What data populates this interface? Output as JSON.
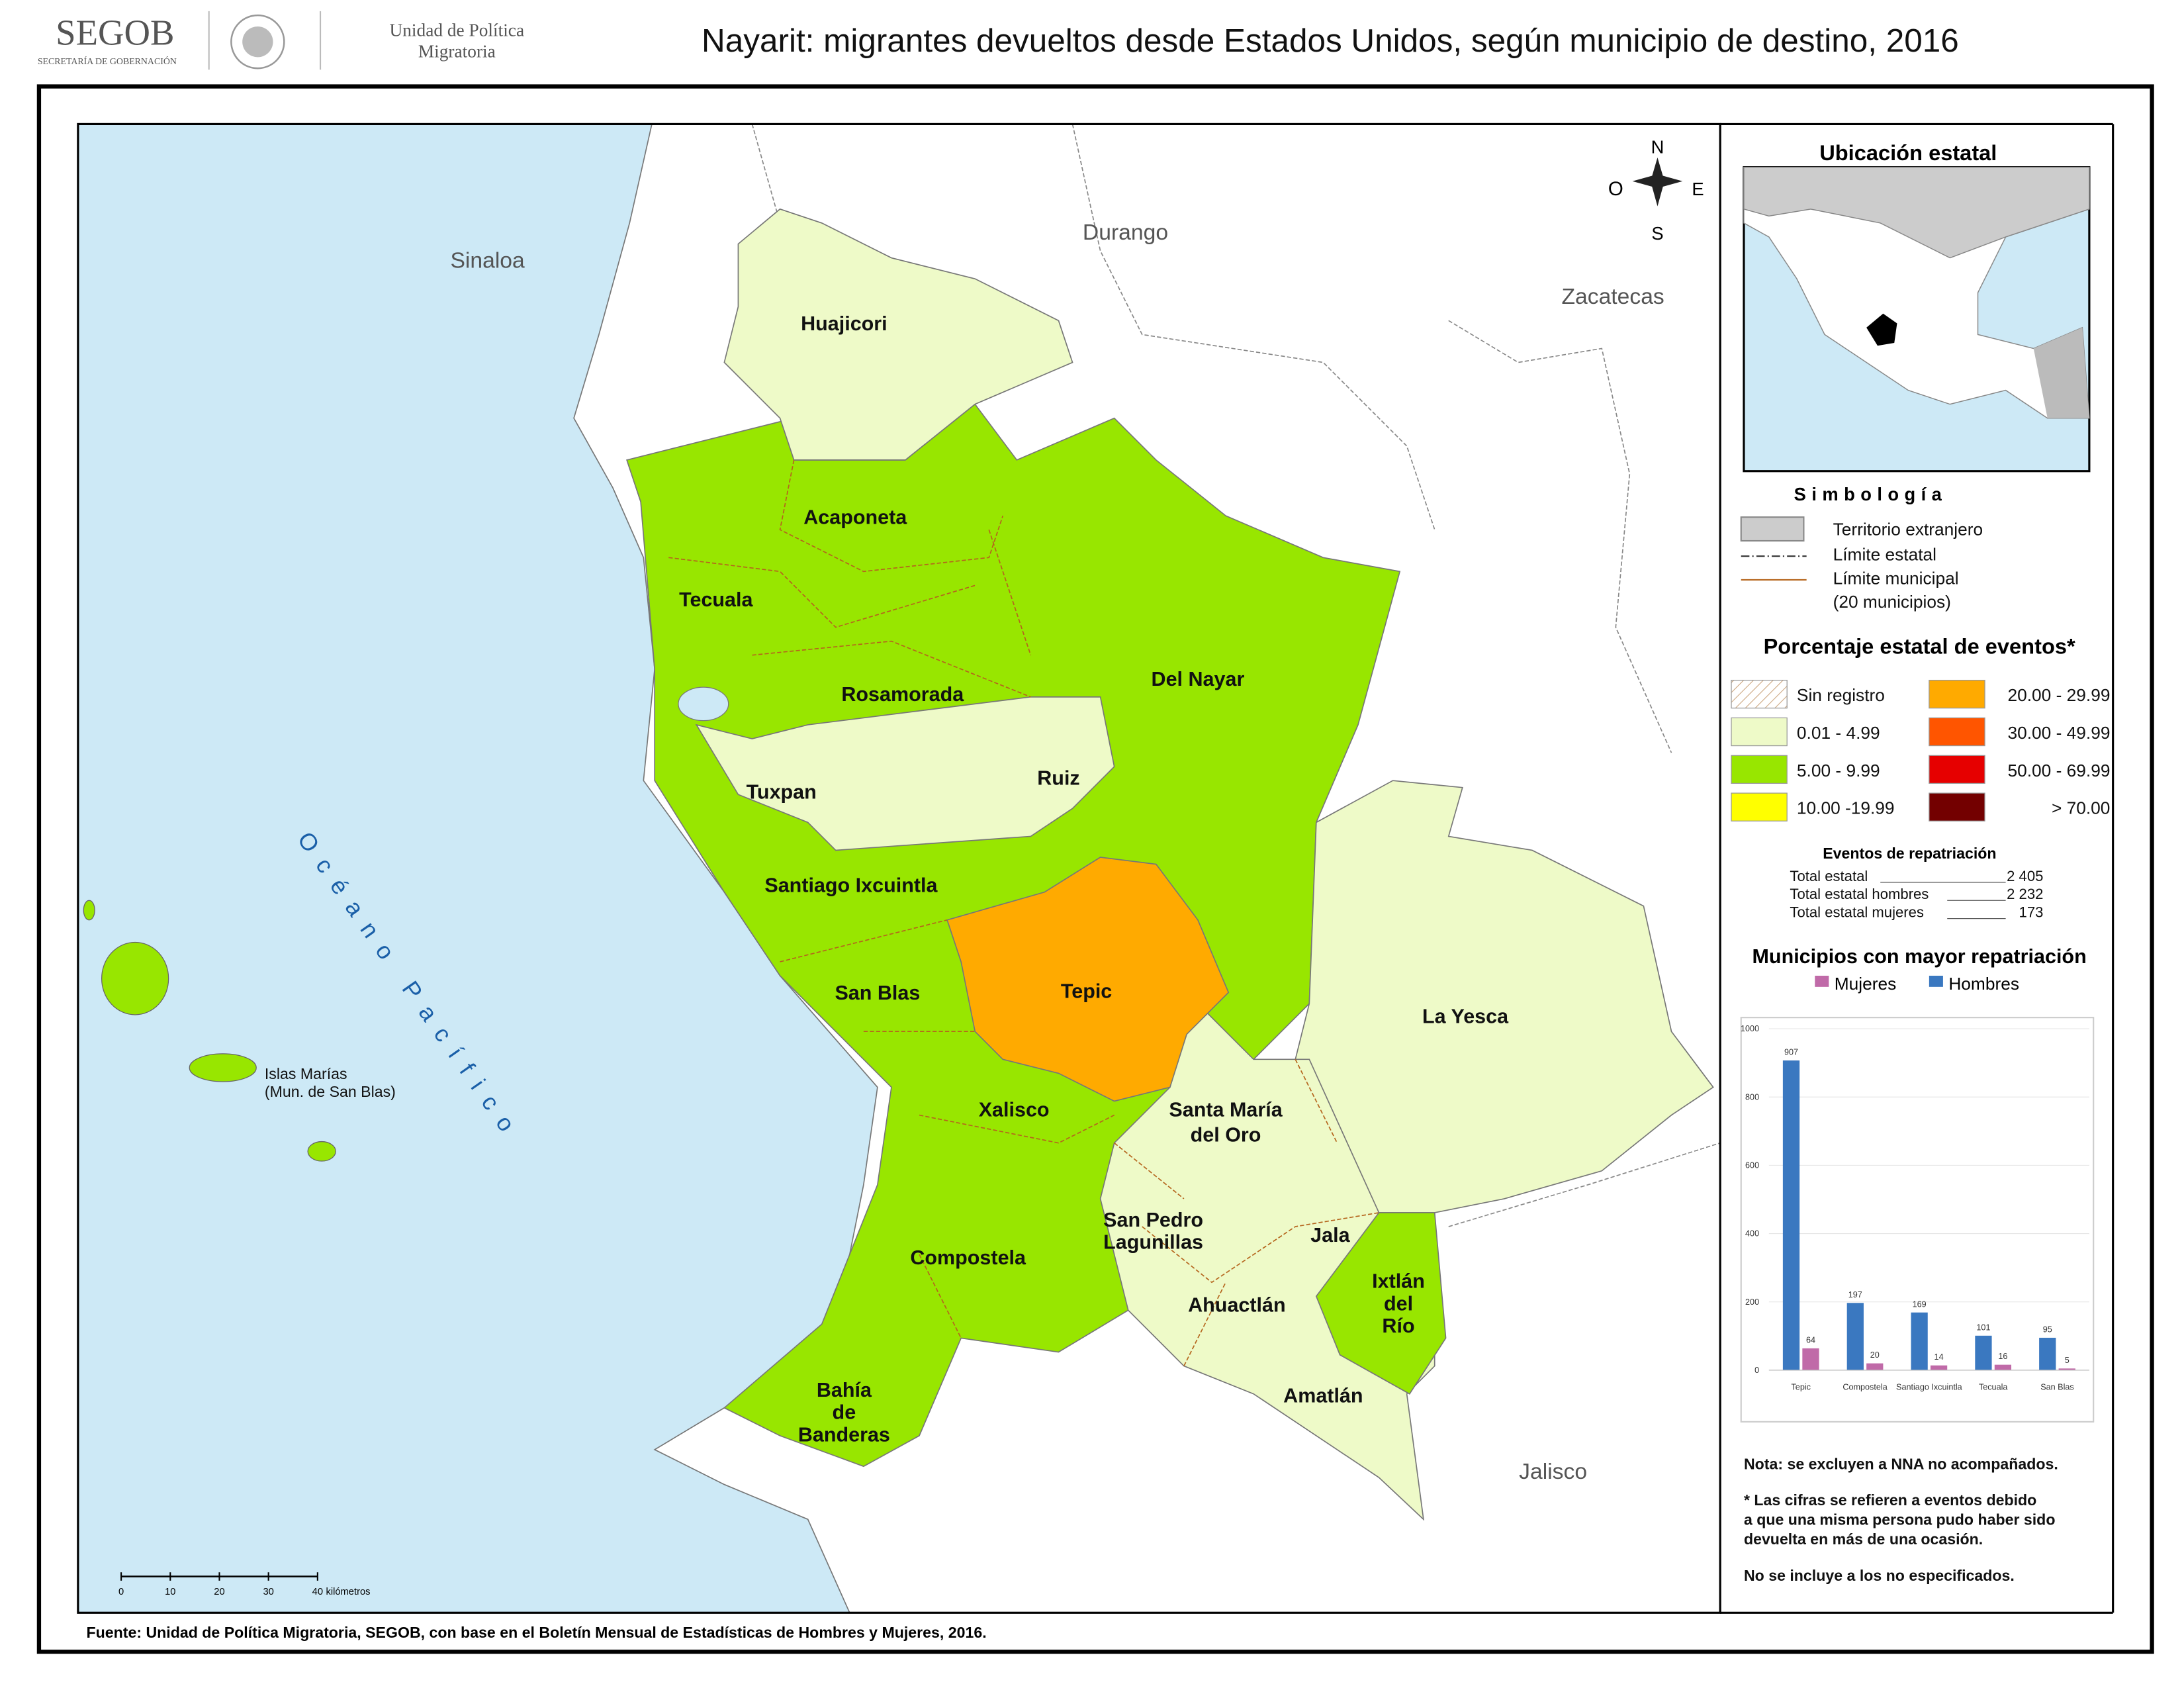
{
  "header": {
    "logo": "SEGOB",
    "logo_subtitle": "SECRETARÍA DE GOBERNACIÓN",
    "unit": [
      "Unidad de Política",
      "Migratoria"
    ],
    "title": "Nayarit: migrantes devueltos desde Estados Unidos, según municipio de destino, 2016"
  },
  "map": {
    "states": [
      "Sinaloa",
      "Durango",
      "Zacatecas",
      "Jalisco"
    ],
    "ocean": "Océano Pacífico",
    "islands": [
      "Islas Marías",
      "(Mun. de San Blas)"
    ],
    "compass": [
      "N",
      "O",
      "E",
      "S"
    ],
    "municipalities": {
      "huajicori": [
        "Huajicori"
      ],
      "acaponeta": [
        "Acaponeta"
      ],
      "tecuala": [
        "Tecuala"
      ],
      "rosamorada": [
        "Rosamorada"
      ],
      "del_nayar": [
        "Del Nayar"
      ],
      "ruiz": [
        "Ruiz"
      ],
      "tuxpan": [
        "Tuxpan"
      ],
      "santiago": [
        "Santiago Ixcuintla"
      ],
      "san_blas": [
        "San Blas"
      ],
      "tepic": [
        "Tepic"
      ],
      "la_yesca": [
        "La Yesca"
      ],
      "xalisco": [
        "Xalisco"
      ],
      "santa_maria": [
        "Santa María",
        "del Oro"
      ],
      "san_pedro": [
        "San Pedro",
        "Lagunillas"
      ],
      "jala": [
        "Jala"
      ],
      "ixtlan": [
        "Ixtlán",
        "del",
        "Río"
      ],
      "ahuacatlan": [
        "Ahuactlán"
      ],
      "compostela": [
        "Compostela"
      ],
      "amatlan": [
        "Amatlán"
      ],
      "bahia": [
        "Bahía",
        "de",
        "Banderas"
      ]
    },
    "scale_bar": {
      "ticks": [
        0,
        10,
        20,
        30,
        40
      ],
      "unit": "kilómetros"
    }
  },
  "legend": {
    "location_title": "Ubicación estatal",
    "symbology_title": "Simbología",
    "symbols": [
      "Territorio extranjero",
      "Límite estatal",
      "Límite municipal",
      "(20 municipios)"
    ],
    "classes_title": "Porcentaje estatal de eventos*",
    "classes": [
      {
        "label": "Sin registro",
        "color": "hatch"
      },
      {
        "label": "0.01  - 4.99",
        "color": "#eefac8"
      },
      {
        "label": "5.00  - 9.99",
        "color": "#98e600"
      },
      {
        "label": "10.00 -19.99",
        "color": "#ffff00"
      },
      {
        "label": "20.00 - 29.99",
        "color": "#ffaa00"
      },
      {
        "label": "30.00 - 49.99",
        "color": "#ff5500"
      },
      {
        "label": "50.00 - 69.99",
        "color": "#e60000"
      },
      {
        "label": "> 70.00",
        "color": "#730000"
      }
    ],
    "totals_title": "Eventos de repatriación",
    "totals": [
      {
        "label": "Total estatal",
        "value": "2 405"
      },
      {
        "label": "Total estatal hombres",
        "value": "2 232"
      },
      {
        "label": "Total estatal mujeres",
        "value": "173"
      }
    ]
  },
  "chart_data": {
    "type": "bar",
    "title": "Municipios con mayor repatriación",
    "categories": [
      "Tepic",
      "Compostela",
      "Santiago Ixcuintla",
      "Tecuala",
      "San Blas"
    ],
    "series": [
      {
        "name": "Mujeres",
        "color": "#c06aa8",
        "values": [
          64,
          20,
          14,
          16,
          5
        ]
      },
      {
        "name": "Hombres",
        "color": "#3a78c0",
        "values": [
          907,
          197,
          169,
          101,
          95
        ]
      }
    ],
    "ylim": [
      0,
      1000
    ],
    "yticks": [
      0,
      200,
      400,
      600,
      800,
      1000
    ],
    "grid": true
  },
  "notes": [
    [
      "Nota: se excluyen a NNA no acompañados."
    ],
    [
      "* Las cifras se refieren a eventos debido",
      "a que una misma persona pudo haber sido",
      "devuelta en más de una ocasión."
    ],
    [
      "No se incluye a los no especificados."
    ]
  ],
  "source": "Fuente: Unidad de Política Migratoria, SEGOB, con base en el Boletín Mensual de Estadísticas de Hombres y Mujeres, 2016."
}
